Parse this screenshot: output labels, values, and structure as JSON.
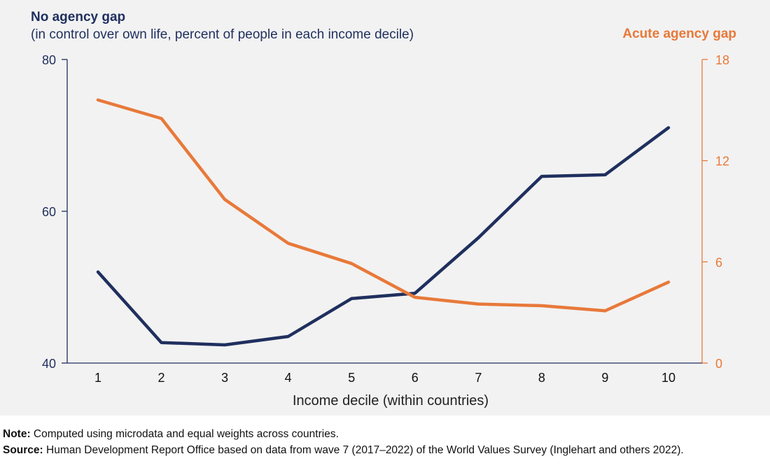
{
  "chart_data": {
    "type": "line",
    "left_title": "No agency gap",
    "left_subtitle": "(in control over own life, percent of people in each income decile)",
    "right_title": "Acute agency gap",
    "xlabel": "Income decile (within countries)",
    "x": [
      1,
      2,
      3,
      4,
      5,
      6,
      7,
      8,
      9,
      10
    ],
    "y_left": {
      "lim": [
        40,
        80
      ],
      "ticks": [
        40,
        60,
        80
      ],
      "color": "#1f2f5e"
    },
    "y_right": {
      "lim": [
        0,
        18
      ],
      "ticks": [
        0,
        6,
        12,
        18
      ],
      "color": "#e8793a"
    },
    "series": [
      {
        "axis": "left",
        "color": "#1f2f5e",
        "values": [
          52.0,
          42.7,
          42.4,
          43.5,
          48.5,
          49.2,
          56.5,
          64.6,
          64.8,
          71.0
        ]
      },
      {
        "axis": "right",
        "color": "#e8793a",
        "values": [
          15.6,
          14.5,
          9.7,
          7.1,
          5.9,
          3.9,
          3.5,
          3.4,
          3.1,
          4.8
        ]
      }
    ],
    "grid": false
  },
  "notes": {
    "note_label": "Note:",
    "note_text": " Computed using microdata and equal weights across countries.",
    "source_label": "Source:",
    "source_text": " Human Development Report Office based on data from wave 7 (2017–2022) of the World Values Survey (Inglehart and others 2022)."
  }
}
